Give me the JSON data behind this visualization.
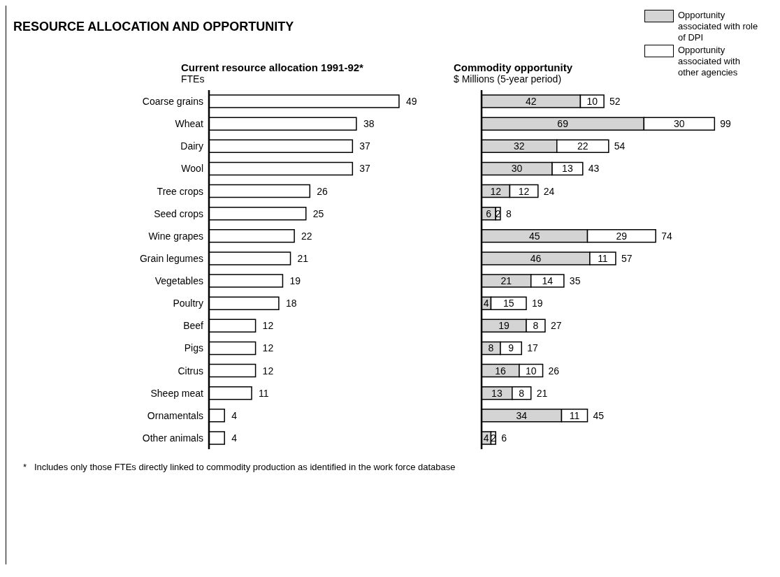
{
  "chart_data": [
    {
      "type": "bar",
      "orientation": "horizontal",
      "title": "Current resource allocation 1991-92*",
      "xlabel": "FTEs",
      "categories": [
        "Coarse grains",
        "Wheat",
        "Dairy",
        "Wool",
        "Tree crops",
        "Seed crops",
        "Wine grapes",
        "Grain legumes",
        "Vegetables",
        "Poultry",
        "Beef",
        "Pigs",
        "Citrus",
        "Sheep meat",
        "Ornamentals",
        "Other animals"
      ],
      "values": [
        49,
        38,
        37,
        37,
        26,
        25,
        22,
        21,
        19,
        18,
        12,
        12,
        12,
        11,
        4,
        4
      ],
      "color": "#ffffff",
      "data_labels": true,
      "annotations": [
        "RESOURCE ALLOCATION AND OPPORTUNITY",
        "*   Includes only those FTEs directly linked to commodity production as identified in the work force database"
      ]
    },
    {
      "type": "bar",
      "orientation": "horizontal",
      "stacked": true,
      "title": "Commodity opportunity",
      "xlabel": "$ Millions (5-year period)",
      "categories": [
        null,
        null,
        null,
        null,
        null,
        null,
        null,
        null,
        null,
        null,
        null,
        null,
        null,
        null,
        null,
        null
      ],
      "series": [
        {
          "name": "Opportunity associated with role of DPI",
          "color": "#d4d4d4",
          "values": [
            42,
            69,
            32,
            30,
            12,
            6,
            45,
            46,
            21,
            4,
            19,
            8,
            16,
            13,
            34,
            4
          ]
        },
        {
          "name": "Opportunity associated with other agencies",
          "color": "#ffffff",
          "values": [
            10,
            30,
            22,
            13,
            12,
            2,
            29,
            11,
            14,
            15,
            8,
            9,
            10,
            8,
            11,
            2
          ]
        }
      ],
      "totals": [
        "52",
        "99",
        "54",
        "43",
        "24",
        "8",
        "74",
        "57",
        "35",
        "19",
        "27",
        "17",
        "26",
        "21",
        "45",
        "6"
      ],
      "data_labels": true,
      "legend": "top right"
    }
  ]
}
